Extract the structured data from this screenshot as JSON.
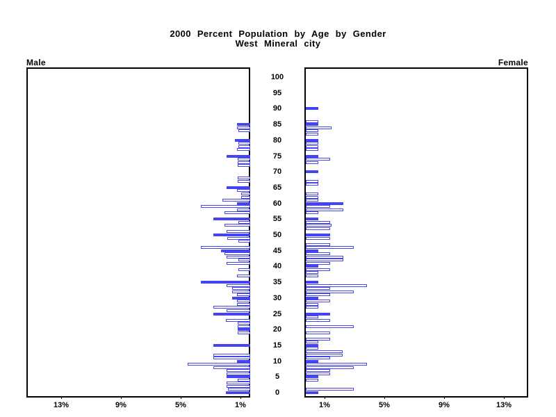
{
  "title": {
    "line1": "2000 Percent Population by Age by Gender",
    "line2": "West Mineral city"
  },
  "panel_labels": {
    "male": "Male",
    "female": "Female"
  },
  "axis": {
    "pct_tick_labels_left": [
      "13%",
      "9%",
      "5%",
      "1%"
    ],
    "pct_tick_labels_right": [
      "1%",
      "5%",
      "9%",
      "13%"
    ],
    "age_tick_labels": [
      "0",
      "5",
      "10",
      "15",
      "20",
      "25",
      "30",
      "35",
      "40",
      "45",
      "50",
      "55",
      "60",
      "65",
      "70",
      "75",
      "80",
      "85",
      "90",
      "95",
      "100"
    ]
  },
  "colors": {
    "bar_blue": "#4444f2",
    "axis_black": "#000000",
    "background": "#ffffff"
  },
  "chart_data": {
    "type": "bar",
    "subtype": "population-pyramid",
    "title": "2000 Percent Population by Age by Gender",
    "subtitle": "West Mineral city",
    "orientation": "horizontal",
    "x_unit": "percent of total population",
    "pct_ticks": [
      1,
      5,
      9,
      13
    ],
    "xlim_pct_each_side": [
      0,
      15
    ],
    "age_min": 0,
    "age_max": 100,
    "age_label_step": 5,
    "bar_style_rule": "bars at ages divisible by 5 are solid blue; all other ages are hollow (white fill, blue outline); ages with 0 draw no bar",
    "legend_position": "none",
    "grid": false,
    "series": [
      {
        "name": "Male",
        "side": "left",
        "values_pct_by_age": [
          1.65,
          1.5,
          1.6,
          1.6,
          0.85,
          1.6,
          1.6,
          1.6,
          2.45,
          4.2,
          0.9,
          2.45,
          2.45,
          0,
          0,
          2.45,
          0,
          0,
          0,
          0.85,
          0.85,
          0.85,
          0.85,
          1.65,
          0,
          2.45,
          1.6,
          2.45,
          0.9,
          0.9,
          1.2,
          0.9,
          1.2,
          1.2,
          1.6,
          3.3,
          0,
          0.9,
          0,
          0.8,
          0,
          1.6,
          0.8,
          1.6,
          1.7,
          1.95,
          3.3,
          0,
          0.8,
          1.55,
          2.45,
          1.6,
          0,
          1.7,
          0.8,
          2.45,
          0,
          1.7,
          0.9,
          3.3,
          0.9,
          1.85,
          0.6,
          0.6,
          0.9,
          1.6,
          0,
          0.85,
          0.85,
          0,
          0,
          0,
          0.85,
          0.85,
          0.85,
          1.6,
          0,
          0.9,
          0.8,
          0.8,
          1.0,
          0,
          0,
          0.8,
          0.9,
          0.9,
          0,
          0,
          0,
          0,
          0,
          0,
          0,
          0,
          0,
          0,
          0,
          0,
          0,
          0,
          0
        ]
      },
      {
        "name": "Female",
        "side": "right",
        "values_pct_by_age": [
          0.85,
          3.2,
          0,
          0,
          0.85,
          0.85,
          1.65,
          1.65,
          3.2,
          4.1,
          0.85,
          1.65,
          2.45,
          2.45,
          0.85,
          0.85,
          0.85,
          1.65,
          0,
          1.65,
          0,
          3.2,
          0,
          1.65,
          0.85,
          1.65,
          0,
          0.85,
          0.85,
          1.65,
          0.85,
          1.65,
          3.2,
          1.65,
          4.1,
          0.85,
          0,
          0.85,
          0.85,
          1.65,
          0.85,
          1.65,
          2.5,
          2.5,
          1.65,
          0.85,
          3.2,
          1.65,
          0,
          1.65,
          1.65,
          0,
          1.65,
          1.7,
          1.65,
          0.85,
          0,
          0.85,
          2.5,
          1.65,
          2.5,
          0.85,
          0.85,
          0.85,
          0,
          0,
          0.85,
          0.85,
          0,
          0,
          0.85,
          0,
          0,
          0.85,
          1.65,
          0.85,
          0,
          0.85,
          0.85,
          0.85,
          0.85,
          0,
          0.85,
          0.85,
          1.7,
          0.85,
          0.85,
          0,
          0,
          0,
          0.85,
          0,
          0,
          0,
          0,
          0,
          0,
          0,
          0,
          0,
          0
        ]
      }
    ]
  },
  "layout_note": "Male bars grow leftward from inner edge of left panel; Female bars grow rightward from inner edge of right panel; age axis labels run down the center gap."
}
